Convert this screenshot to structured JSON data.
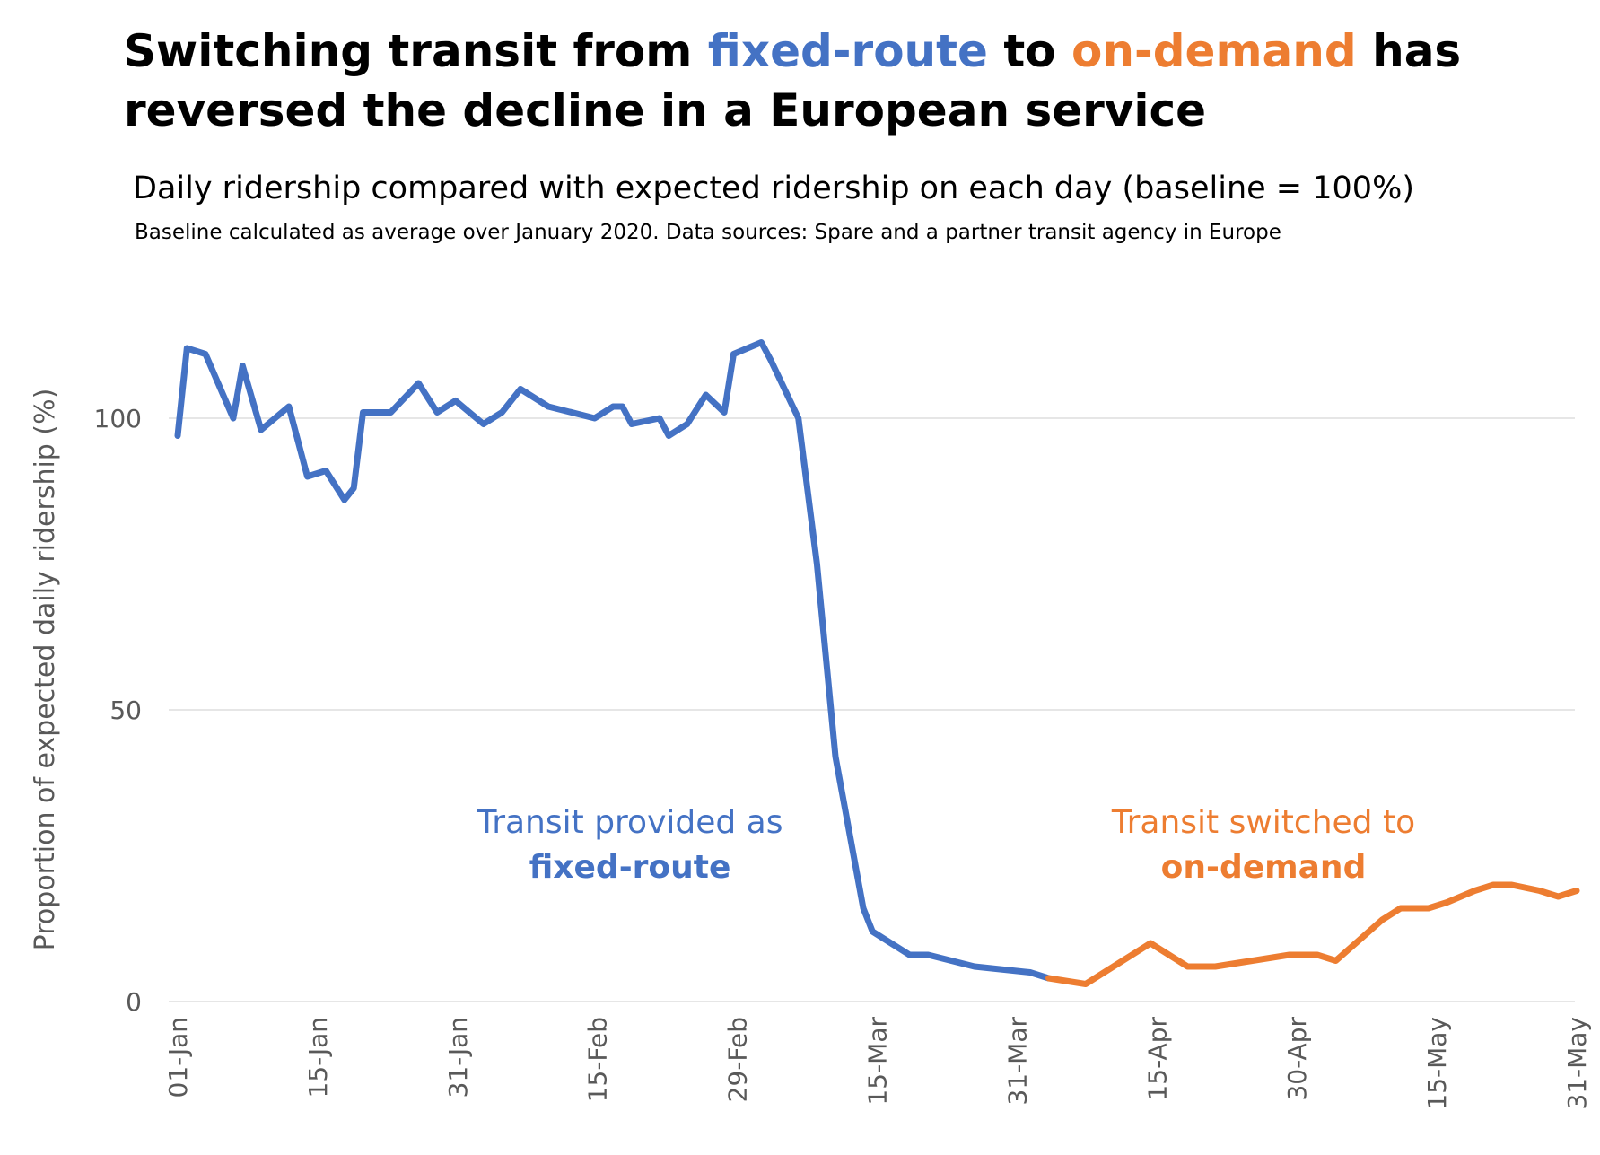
{
  "title": {
    "part1": "Switching transit from ",
    "fixed": "fixed-route",
    "part2": " to ",
    "demand": "on-demand",
    "part3": " has reversed the decline in a European service"
  },
  "subtitle": "Daily ridership compared with expected ridership on each day (baseline = 100%)",
  "note": "Baseline calculated as average over January 2020. Data sources: Spare and a partner transit agency in Europe",
  "colors": {
    "fixed": "#4472c4",
    "demand": "#ed7d31",
    "grid": "#e6e6e6",
    "axis_text": "#595959"
  },
  "chart_data": {
    "type": "line",
    "title": "Switching transit from fixed-route to on-demand has reversed the decline in a European service",
    "ylabel": "Proportion of expected daily ridership (%)",
    "xlabel": "",
    "ylim": [
      0,
      115
    ],
    "y_ticks": [
      0,
      50,
      100
    ],
    "x_ticks": [
      "01-Jan",
      "15-Jan",
      "31-Jan",
      "15-Feb",
      "29-Feb",
      "15-Mar",
      "31-Mar",
      "15-Apr",
      "30-Apr",
      "15-May",
      "31-May"
    ],
    "grid": "horizontal",
    "annotations": [
      {
        "lines": [
          "Transit provided as",
          "fixed-route"
        ],
        "series": "fixed-route"
      },
      {
        "lines": [
          "Transit switched to",
          "on-demand"
        ],
        "series": "on-demand"
      }
    ],
    "series": [
      {
        "name": "fixed-route",
        "color": "#4472c4",
        "x": [
          "2020-01-01",
          "2020-01-02",
          "2020-01-04",
          "2020-01-07",
          "2020-01-08",
          "2020-01-10",
          "2020-01-13",
          "2020-01-15",
          "2020-01-17",
          "2020-01-19",
          "2020-01-20",
          "2020-01-21",
          "2020-01-24",
          "2020-01-27",
          "2020-01-29",
          "2020-01-31",
          "2020-02-03",
          "2020-02-05",
          "2020-02-07",
          "2020-02-10",
          "2020-02-15",
          "2020-02-17",
          "2020-02-18",
          "2020-02-19",
          "2020-02-22",
          "2020-02-23",
          "2020-02-25",
          "2020-02-27",
          "2020-02-29",
          "2020-03-01",
          "2020-03-04",
          "2020-03-05",
          "2020-03-08",
          "2020-03-10",
          "2020-03-12",
          "2020-03-15",
          "2020-03-16",
          "2020-03-20",
          "2020-03-22",
          "2020-03-27",
          "2020-04-02",
          "2020-04-04"
        ],
        "values": [
          97,
          112,
          111,
          100,
          109,
          98,
          102,
          90,
          91,
          86,
          88,
          101,
          101,
          106,
          101,
          103,
          99,
          101,
          105,
          102,
          100,
          102,
          102,
          99,
          100,
          97,
          99,
          104,
          101,
          111,
          113,
          110,
          100,
          75,
          42,
          16,
          12,
          8,
          8,
          6,
          5,
          4
        ]
      },
      {
        "name": "on-demand",
        "color": "#ed7d31",
        "x": [
          "2020-04-04",
          "2020-04-08",
          "2020-04-12",
          "2020-04-15",
          "2020-04-19",
          "2020-04-22",
          "2020-04-26",
          "2020-04-30",
          "2020-05-03",
          "2020-05-05",
          "2020-05-10",
          "2020-05-12",
          "2020-05-15",
          "2020-05-17",
          "2020-05-20",
          "2020-05-22",
          "2020-05-24",
          "2020-05-27",
          "2020-05-29",
          "2020-05-31"
        ],
        "values": [
          4,
          3,
          7,
          10,
          6,
          6,
          7,
          8,
          8,
          7,
          14,
          16,
          16,
          17,
          19,
          20,
          20,
          19,
          18,
          19
        ]
      }
    ]
  }
}
